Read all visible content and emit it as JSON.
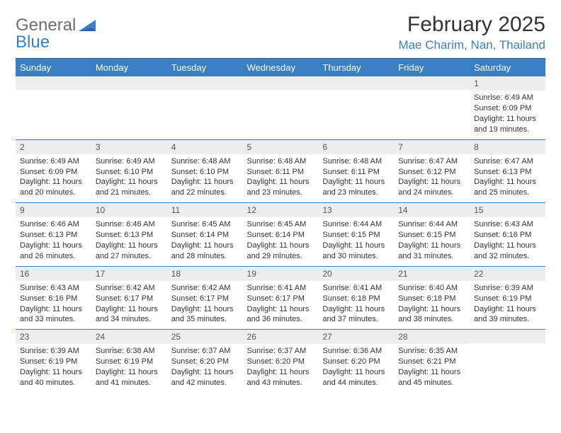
{
  "logo": {
    "word1": "General",
    "word2": "Blue"
  },
  "title": "February 2025",
  "location": "Mae Charim, Nan, Thailand",
  "colors": {
    "header_bg": "#3a7fc4",
    "header_border": "#2a5f9e",
    "row_divider": "#3a7fc4",
    "daynum_bg": "#ededed",
    "text": "#333333",
    "logo_gray": "#6e6e6e",
    "logo_blue": "#3a7fc4"
  },
  "weekdays": [
    "Sunday",
    "Monday",
    "Tuesday",
    "Wednesday",
    "Thursday",
    "Friday",
    "Saturday"
  ],
  "grid": [
    [
      {
        "day": "",
        "text": ""
      },
      {
        "day": "",
        "text": ""
      },
      {
        "day": "",
        "text": ""
      },
      {
        "day": "",
        "text": ""
      },
      {
        "day": "",
        "text": ""
      },
      {
        "day": "",
        "text": ""
      },
      {
        "day": "1",
        "text": "Sunrise: 6:49 AM\nSunset: 6:09 PM\nDaylight: 11 hours and 19 minutes."
      }
    ],
    [
      {
        "day": "2",
        "text": "Sunrise: 6:49 AM\nSunset: 6:09 PM\nDaylight: 11 hours and 20 minutes."
      },
      {
        "day": "3",
        "text": "Sunrise: 6:49 AM\nSunset: 6:10 PM\nDaylight: 11 hours and 21 minutes."
      },
      {
        "day": "4",
        "text": "Sunrise: 6:48 AM\nSunset: 6:10 PM\nDaylight: 11 hours and 22 minutes."
      },
      {
        "day": "5",
        "text": "Sunrise: 6:48 AM\nSunset: 6:11 PM\nDaylight: 11 hours and 23 minutes."
      },
      {
        "day": "6",
        "text": "Sunrise: 6:48 AM\nSunset: 6:11 PM\nDaylight: 11 hours and 23 minutes."
      },
      {
        "day": "7",
        "text": "Sunrise: 6:47 AM\nSunset: 6:12 PM\nDaylight: 11 hours and 24 minutes."
      },
      {
        "day": "8",
        "text": "Sunrise: 6:47 AM\nSunset: 6:13 PM\nDaylight: 11 hours and 25 minutes."
      }
    ],
    [
      {
        "day": "9",
        "text": "Sunrise: 6:46 AM\nSunset: 6:13 PM\nDaylight: 11 hours and 26 minutes."
      },
      {
        "day": "10",
        "text": "Sunrise: 6:46 AM\nSunset: 6:13 PM\nDaylight: 11 hours and 27 minutes."
      },
      {
        "day": "11",
        "text": "Sunrise: 6:45 AM\nSunset: 6:14 PM\nDaylight: 11 hours and 28 minutes."
      },
      {
        "day": "12",
        "text": "Sunrise: 6:45 AM\nSunset: 6:14 PM\nDaylight: 11 hours and 29 minutes."
      },
      {
        "day": "13",
        "text": "Sunrise: 6:44 AM\nSunset: 6:15 PM\nDaylight: 11 hours and 30 minutes."
      },
      {
        "day": "14",
        "text": "Sunrise: 6:44 AM\nSunset: 6:15 PM\nDaylight: 11 hours and 31 minutes."
      },
      {
        "day": "15",
        "text": "Sunrise: 6:43 AM\nSunset: 6:16 PM\nDaylight: 11 hours and 32 minutes."
      }
    ],
    [
      {
        "day": "16",
        "text": "Sunrise: 6:43 AM\nSunset: 6:16 PM\nDaylight: 11 hours and 33 minutes."
      },
      {
        "day": "17",
        "text": "Sunrise: 6:42 AM\nSunset: 6:17 PM\nDaylight: 11 hours and 34 minutes."
      },
      {
        "day": "18",
        "text": "Sunrise: 6:42 AM\nSunset: 6:17 PM\nDaylight: 11 hours and 35 minutes."
      },
      {
        "day": "19",
        "text": "Sunrise: 6:41 AM\nSunset: 6:17 PM\nDaylight: 11 hours and 36 minutes."
      },
      {
        "day": "20",
        "text": "Sunrise: 6:41 AM\nSunset: 6:18 PM\nDaylight: 11 hours and 37 minutes."
      },
      {
        "day": "21",
        "text": "Sunrise: 6:40 AM\nSunset: 6:18 PM\nDaylight: 11 hours and 38 minutes."
      },
      {
        "day": "22",
        "text": "Sunrise: 6:39 AM\nSunset: 6:19 PM\nDaylight: 11 hours and 39 minutes."
      }
    ],
    [
      {
        "day": "23",
        "text": "Sunrise: 6:39 AM\nSunset: 6:19 PM\nDaylight: 11 hours and 40 minutes."
      },
      {
        "day": "24",
        "text": "Sunrise: 6:38 AM\nSunset: 6:19 PM\nDaylight: 11 hours and 41 minutes."
      },
      {
        "day": "25",
        "text": "Sunrise: 6:37 AM\nSunset: 6:20 PM\nDaylight: 11 hours and 42 minutes."
      },
      {
        "day": "26",
        "text": "Sunrise: 6:37 AM\nSunset: 6:20 PM\nDaylight: 11 hours and 43 minutes."
      },
      {
        "day": "27",
        "text": "Sunrise: 6:36 AM\nSunset: 6:20 PM\nDaylight: 11 hours and 44 minutes."
      },
      {
        "day": "28",
        "text": "Sunrise: 6:35 AM\nSunset: 6:21 PM\nDaylight: 11 hours and 45 minutes."
      },
      {
        "day": "",
        "text": ""
      }
    ]
  ]
}
